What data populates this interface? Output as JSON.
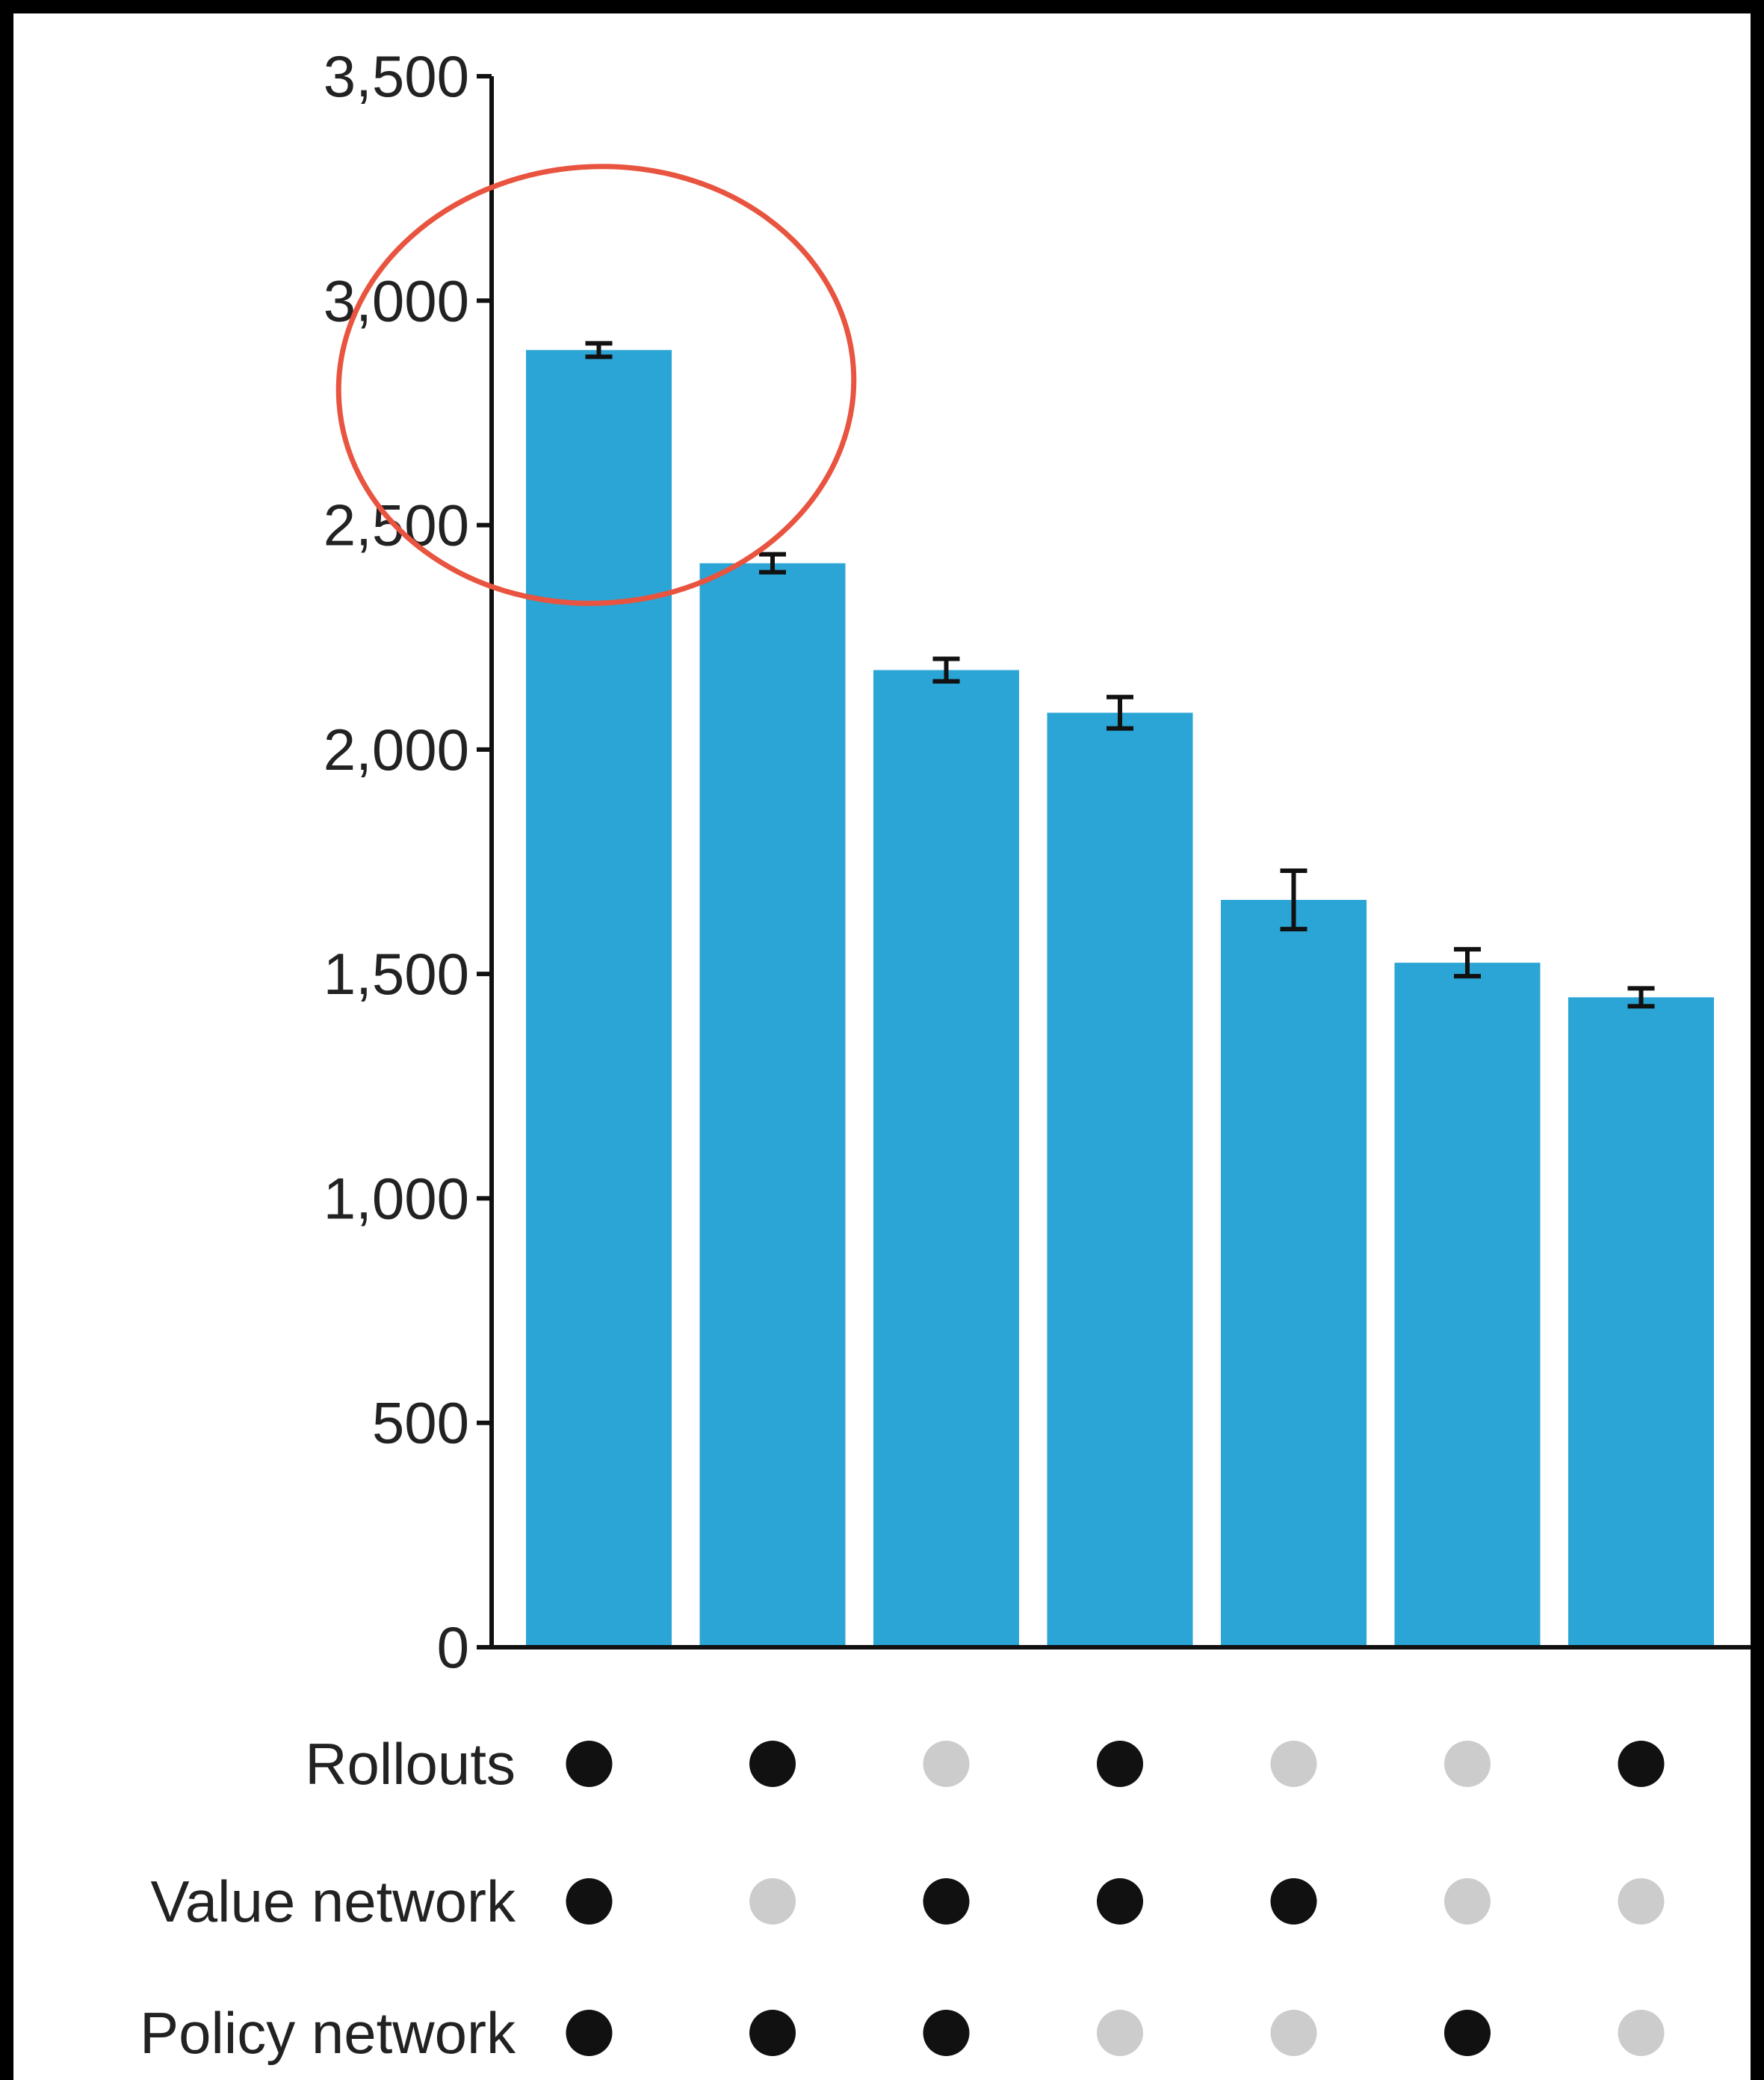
{
  "chart_data": {
    "type": "bar",
    "title": "",
    "xlabel": "",
    "ylabel": "",
    "ylim": [
      0,
      3500
    ],
    "yticks": [
      0,
      500,
      1000,
      1500,
      2000,
      2500,
      3000,
      3500
    ],
    "ytick_labels": [
      "0",
      "500",
      "1,000",
      "1,500",
      "2,000",
      "2,500",
      "3,000",
      "3,500"
    ],
    "grid": false,
    "values": [
      2890,
      2415,
      2177,
      2082,
      1665,
      1525,
      1448
    ],
    "errors": [
      15,
      20,
      25,
      35,
      65,
      30,
      20
    ],
    "bar_color": "#2aa5d6",
    "configuration_rows": [
      {
        "label": "Rollouts",
        "enabled": [
          true,
          true,
          false,
          true,
          false,
          false,
          true
        ]
      },
      {
        "label": "Value network",
        "enabled": [
          true,
          false,
          true,
          true,
          true,
          false,
          false
        ]
      },
      {
        "label": "Policy network",
        "enabled": [
          true,
          true,
          true,
          false,
          false,
          true,
          false
        ]
      }
    ],
    "dot_on_color": "#111111",
    "dot_off_color": "#cccccc",
    "annotation": {
      "shape": "circle",
      "color": "#e8543f",
      "target_bar_index": 0
    }
  }
}
